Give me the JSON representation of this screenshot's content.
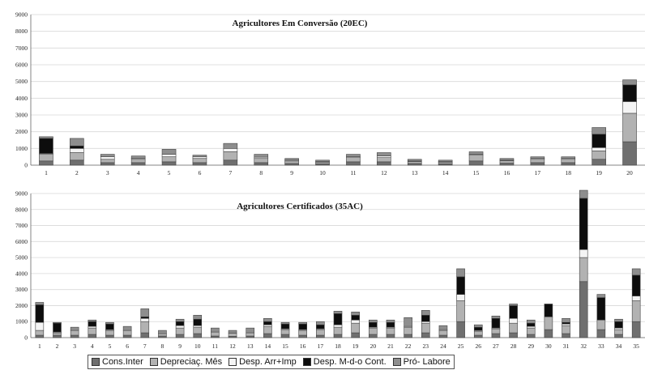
{
  "colors": {
    "cons_inter": "#6f6f6f",
    "depreciac": "#b2b2b2",
    "desp_arr": "#f4f4f4",
    "desp_mdo": "#0d0d0d",
    "pro_labore": "#8e8e8e",
    "grid": "#d8d8d8",
    "bar_stroke": "#444444"
  },
  "legend": [
    {
      "name": "Cons.Inter",
      "color": "#6f6f6f"
    },
    {
      "name": "Depreciaç. Mês",
      "color": "#b2b2b2"
    },
    {
      "name": "Desp. Arr+Imp",
      "color": "#f4f4f4"
    },
    {
      "name": "Desp. M-d-o Cont.",
      "color": "#0d0d0d"
    },
    {
      "name": "Pró- Labore",
      "color": "#8e8e8e"
    }
  ],
  "chart_data": [
    {
      "type": "bar",
      "stacked": true,
      "title": "Agricultores Em Conversão (20EC)",
      "ylim": [
        0,
        9000
      ],
      "yticks": [
        0,
        1000,
        2000,
        3000,
        4000,
        5000,
        6000,
        7000,
        8000,
        9000
      ],
      "categories": [
        "1",
        "2",
        "3",
        "4",
        "5",
        "6",
        "7",
        "8",
        "9",
        "10",
        "11",
        "12",
        "13",
        "14",
        "15",
        "16",
        "17",
        "18",
        "19",
        "20"
      ],
      "series": [
        {
          "name": "Cons.Inter",
          "values": [
            250,
            300,
            150,
            150,
            200,
            150,
            300,
            150,
            100,
            80,
            200,
            200,
            100,
            80,
            250,
            120,
            150,
            150,
            350,
            1400
          ]
        },
        {
          "name": "Depreciaç. Mês",
          "values": [
            400,
            450,
            200,
            200,
            300,
            250,
            500,
            250,
            150,
            100,
            250,
            250,
            120,
            100,
            350,
            150,
            200,
            200,
            500,
            1700
          ]
        },
        {
          "name": "Desp. Arr+Imp",
          "values": [
            50,
            250,
            150,
            50,
            150,
            100,
            200,
            80,
            50,
            30,
            50,
            100,
            30,
            30,
            50,
            30,
            50,
            50,
            200,
            700
          ]
        },
        {
          "name": "Desp. M-d-o Cont.",
          "values": [
            900,
            150,
            0,
            0,
            0,
            0,
            0,
            0,
            0,
            0,
            0,
            0,
            0,
            0,
            0,
            0,
            0,
            0,
            800,
            1000
          ]
        },
        {
          "name": "Pró- Labore",
          "values": [
            100,
            450,
            150,
            150,
            300,
            100,
            300,
            170,
            100,
            90,
            150,
            200,
            100,
            90,
            150,
            100,
            100,
            100,
            400,
            300
          ]
        }
      ]
    },
    {
      "type": "bar",
      "stacked": true,
      "title": "Agricultores Certificados (35AC)",
      "ylim": [
        0,
        9000
      ],
      "yticks": [
        0,
        1000,
        2000,
        3000,
        4000,
        5000,
        6000,
        7000,
        8000,
        9000
      ],
      "categories": [
        "1",
        "2",
        "3",
        "4",
        "5",
        "6",
        "7",
        "8",
        "9",
        "10",
        "11",
        "12",
        "13",
        "14",
        "15",
        "16",
        "17",
        "18",
        "19",
        "20",
        "21",
        "22",
        "23",
        "24",
        "25",
        "26",
        "27",
        "28",
        "29",
        "30",
        "31",
        "32",
        "33",
        "34",
        "35"
      ],
      "series": [
        {
          "name": "Cons.Inter",
          "values": [
            150,
            150,
            150,
            200,
            150,
            150,
            300,
            100,
            200,
            250,
            100,
            80,
            100,
            250,
            200,
            150,
            150,
            200,
            300,
            200,
            200,
            200,
            300,
            150,
            1000,
            150,
            250,
            300,
            200,
            500,
            250,
            3500,
            500,
            200,
            1000
          ]
        },
        {
          "name": "Depreciaç. Mês",
          "values": [
            300,
            150,
            300,
            400,
            300,
            300,
            700,
            150,
            400,
            400,
            250,
            200,
            200,
            450,
            300,
            300,
            350,
            450,
            600,
            400,
            400,
            450,
            600,
            300,
            1300,
            250,
            300,
            600,
            400,
            800,
            500,
            1500,
            600,
            300,
            1300
          ]
        },
        {
          "name": "Desp. Arr+Imp",
          "values": [
            500,
            50,
            0,
            100,
            50,
            0,
            200,
            0,
            150,
            100,
            0,
            0,
            0,
            100,
            50,
            50,
            50,
            150,
            200,
            50,
            50,
            50,
            100,
            50,
            400,
            50,
            50,
            300,
            100,
            0,
            100,
            500,
            0,
            100,
            300
          ]
        },
        {
          "name": "Desp. M-d-o Cont.",
          "values": [
            1100,
            550,
            0,
            300,
            350,
            0,
            100,
            0,
            250,
            400,
            0,
            0,
            0,
            200,
            300,
            350,
            250,
            700,
            300,
            300,
            300,
            0,
            400,
            0,
            1100,
            200,
            600,
            800,
            200,
            800,
            100,
            3200,
            1400,
            400,
            1300
          ]
        },
        {
          "name": "Pró- Labore",
          "values": [
            150,
            50,
            200,
            100,
            100,
            250,
            500,
            200,
            150,
            250,
            250,
            170,
            300,
            200,
            100,
            100,
            200,
            150,
            200,
            150,
            150,
            550,
            300,
            250,
            500,
            150,
            150,
            100,
            200,
            0,
            250,
            500,
            200,
            150,
            400
          ]
        }
      ]
    }
  ]
}
